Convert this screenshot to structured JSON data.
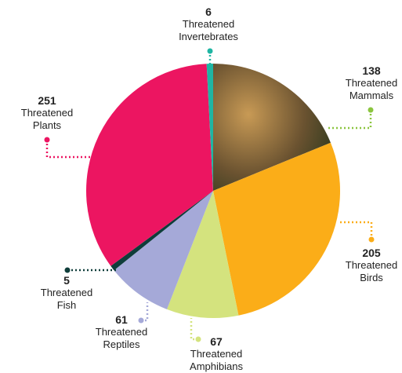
{
  "chart_data": {
    "type": "pie",
    "start_angle": 0,
    "categories": [
      "Threatened Mammals",
      "Threatened Birds",
      "Threatened Amphibians",
      "Threatened Reptiles",
      "Threatened Fish",
      "Threatened Plants",
      "Threatened Invertebrates"
    ],
    "values": [
      138,
      205,
      67,
      61,
      5,
      251,
      6
    ],
    "colors": [
      "#8bc53f",
      "#fbad18",
      "#d4e37e",
      "#a5a9d8",
      "#0f3d3a",
      "#ec1561",
      "#1fb5a3"
    ]
  }
}
